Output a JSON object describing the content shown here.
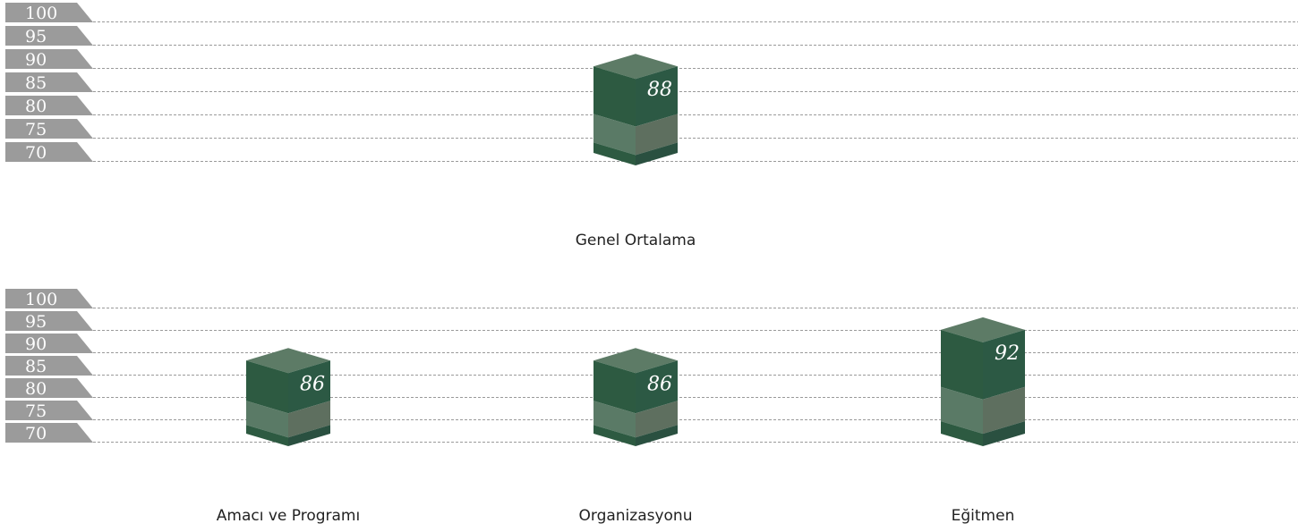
{
  "chart_data": [
    {
      "type": "bar",
      "ylim": [
        70,
        100
      ],
      "yticks": [
        "100",
        "95",
        "90",
        "85",
        "80",
        "75",
        "70"
      ],
      "categories": [
        "Genel Ortalama"
      ],
      "values": [
        88
      ],
      "value_labels": [
        "88"
      ],
      "grid": true,
      "colors": {
        "bar": "#2d5a41",
        "bar_band": "#5a7a66",
        "tab": "#9b9b9b",
        "grid": "#9a9a9a"
      }
    },
    {
      "type": "bar",
      "ylim": [
        70,
        100
      ],
      "yticks": [
        "100",
        "95",
        "90",
        "85",
        "80",
        "75",
        "70"
      ],
      "categories": [
        "Amacı ve Programı",
        "Organizasyonu",
        "Eğitmen"
      ],
      "values": [
        86,
        86,
        92
      ],
      "value_labels": [
        "86",
        "86",
        "92"
      ],
      "grid": true,
      "colors": {
        "bar": "#2d5a41",
        "bar_band": "#5a7a66",
        "tab": "#9b9b9b",
        "grid": "#9a9a9a"
      }
    }
  ]
}
